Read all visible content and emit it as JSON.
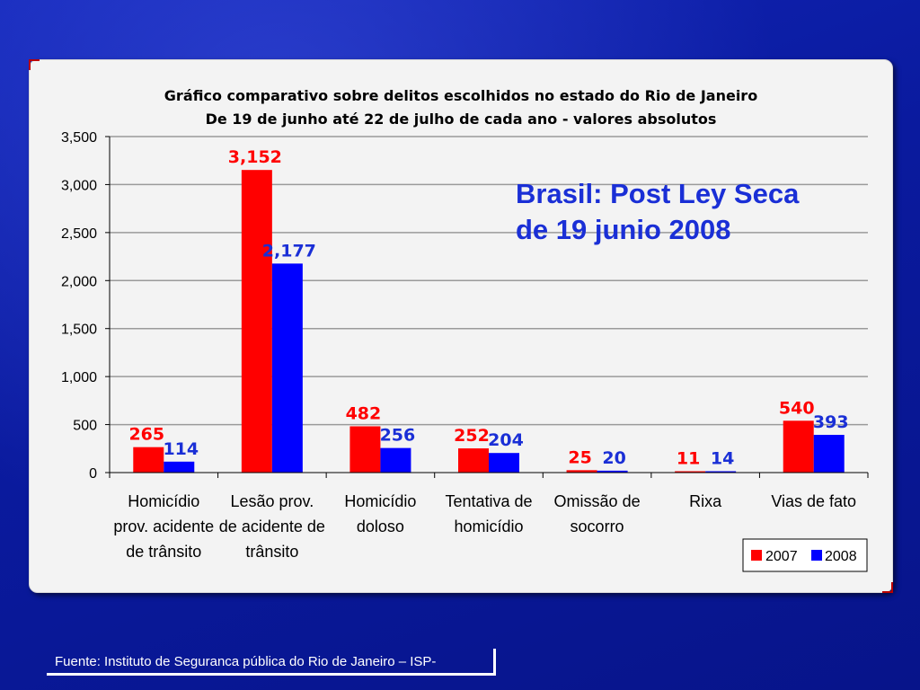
{
  "chart_data": {
    "type": "bar",
    "title": "Gráfico comparativo sobre delitos escolhidos no estado do Rio de Janeiro",
    "subtitle": "De 19 de junho até 22 de julho de cada ano - valores absolutos",
    "categories": [
      [
        "Homicídio",
        "prov. acidente",
        "de trânsito"
      ],
      [
        "Lesão prov.",
        "de acidente de",
        "trânsito"
      ],
      [
        "Homicídio",
        "doloso"
      ],
      [
        "Tentativa de",
        "homicídio"
      ],
      [
        "Omissão de",
        "socorro"
      ],
      [
        "Rixa"
      ],
      [
        "Vias de fato"
      ]
    ],
    "series": [
      {
        "name": "2007",
        "color": "#ff0000",
        "label_color": "#ff0000",
        "values": [
          265,
          3152,
          482,
          252,
          25,
          11,
          540
        ],
        "labels": [
          "265",
          "3,152",
          "482",
          "252",
          "25",
          "11",
          "540"
        ]
      },
      {
        "name": "2008",
        "color": "#0000ff",
        "label_color": "#1a2fd6",
        "values": [
          114,
          2177,
          256,
          204,
          20,
          14,
          393
        ],
        "labels": [
          "114",
          "2,177",
          "256",
          "204",
          "20",
          "14",
          "393"
        ]
      }
    ],
    "ylim": [
      0,
      3500
    ],
    "yticks": [
      0,
      500,
      1000,
      1500,
      2000,
      2500,
      3000,
      3500
    ],
    "ytick_labels": [
      "0",
      "500",
      "1,000",
      "1,500",
      "2,000",
      "2,500",
      "3,000",
      "3,500"
    ],
    "grid": true,
    "legend_position": "bottom-right"
  },
  "overlay": {
    "line1": "Brasil: Post Ley Seca",
    "line2": "de 19 junio 2008"
  },
  "source": "Fuente: Instituto de Seguranca pública do Rio de Janeiro – ISP-"
}
